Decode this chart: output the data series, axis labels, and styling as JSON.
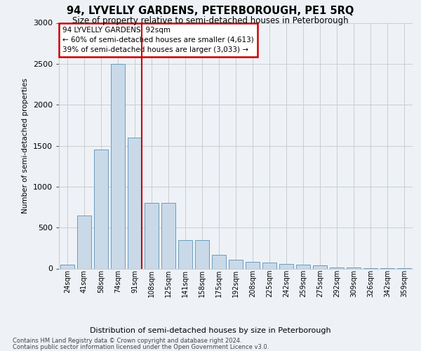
{
  "title": "94, LYVELLY GARDENS, PETERBOROUGH, PE1 5RQ",
  "subtitle": "Size of property relative to semi-detached houses in Peterborough",
  "xlabel": "Distribution of semi-detached houses by size in Peterborough",
  "ylabel": "Number of semi-detached properties",
  "footnote1": "Contains HM Land Registry data © Crown copyright and database right 2024.",
  "footnote2": "Contains public sector information licensed under the Open Government Licence v3.0.",
  "categories": [
    "24sqm",
    "41sqm",
    "58sqm",
    "74sqm",
    "91sqm",
    "108sqm",
    "125sqm",
    "141sqm",
    "158sqm",
    "175sqm",
    "192sqm",
    "208sqm",
    "225sqm",
    "242sqm",
    "259sqm",
    "275sqm",
    "292sqm",
    "309sqm",
    "326sqm",
    "342sqm",
    "359sqm"
  ],
  "values": [
    50,
    650,
    1450,
    2500,
    1600,
    800,
    800,
    350,
    350,
    170,
    110,
    80,
    70,
    55,
    45,
    35,
    15,
    10,
    8,
    5,
    5
  ],
  "bar_color": "#c9d9e8",
  "bar_edge_color": "#6a9cbf",
  "marker_bin_index": 4,
  "marker_color": "#cc0000",
  "annotation_text": "94 LYVELLY GARDENS: 92sqm\n← 60% of semi-detached houses are smaller (4,613)\n39% of semi-detached houses are larger (3,033) →",
  "annotation_box_color": "#cc0000",
  "ylim": [
    0,
    3000
  ],
  "yticks": [
    0,
    500,
    1000,
    1500,
    2000,
    2500,
    3000
  ],
  "grid_color": "#cccccc",
  "bg_color": "#eef2f7"
}
